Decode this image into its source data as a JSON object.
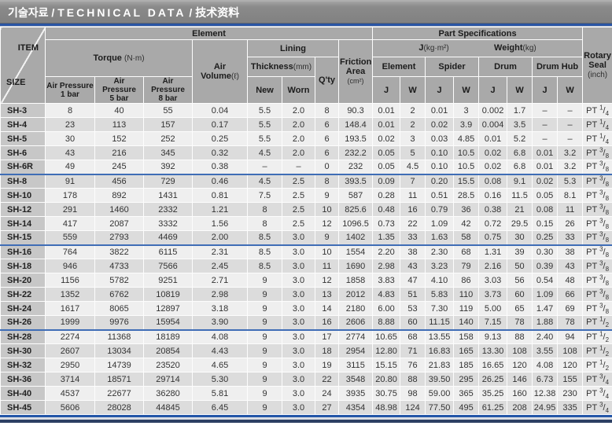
{
  "colors": {
    "accent_blue": "#2a55a4",
    "group_separator_blue": "#3f6db6",
    "bottom_navy": "#2c3f63",
    "header_gray": "#a9a9a9",
    "row_light": "#efefef",
    "row_dark": "#dcdcdc",
    "size_column_gray": "#c7c7c7",
    "titlebar_gray": "#8a8a8a"
  },
  "title": {
    "korean": "기술자료",
    "separator": " / ",
    "english": "TECHNICAL DATA",
    "chinese": "技术资料"
  },
  "table": {
    "corner": {
      "item": "ITEM",
      "size": "SIZE"
    },
    "header": {
      "element_label": "Element",
      "part_specs_label": "Part Specifications",
      "torque_label": "Torque ",
      "torque_unit": "(N·m)",
      "air_pressure_label": "Air Pressure",
      "ap_bars": [
        "1 bar",
        "5 bar",
        "8 bar"
      ],
      "air_volume_label": "Air Volume",
      "air_volume_unit": "(ℓ)",
      "lining_label": "Lining",
      "thickness_label": "Thickness",
      "thickness_unit": "(mm)",
      "new_label": "New",
      "worn_label": "Worn",
      "qty_label": "Q'ty",
      "friction_line1": "Friction",
      "friction_line2": "Area",
      "friction_unit": "(cm²)",
      "j_label": "J",
      "j_unit": "(kg·m²)",
      "weight_label": "Weight",
      "weight_unit": "(kg)",
      "groups": [
        "Element",
        "Spider",
        "Drum",
        "Drum Hub"
      ],
      "j_col": "J",
      "w_col": "W",
      "rotary_line1": "Rotary",
      "rotary_line2": "Seal",
      "rotary_unit": "(inch)"
    },
    "rows": [
      {
        "size": "SH-3",
        "torque_1bar": "8",
        "torque_5bar": "40",
        "torque_8bar": "55",
        "air_volume": "0.04",
        "lining_new": "5.5",
        "lining_worn": "2.0",
        "qty": "8",
        "friction_area": "90.3",
        "element_j": "0.01",
        "element_w": "2",
        "spider_j": "0.01",
        "spider_w": "3",
        "drum_j": "0.002",
        "drum_w": "1.7",
        "drum_hub_j": "–",
        "drum_hub_w": "–",
        "rotary_seal": "PT 1/4",
        "group_end": false
      },
      {
        "size": "SH-4",
        "torque_1bar": "23",
        "torque_5bar": "113",
        "torque_8bar": "157",
        "air_volume": "0.17",
        "lining_new": "5.5",
        "lining_worn": "2.0",
        "qty": "6",
        "friction_area": "148.4",
        "element_j": "0.01",
        "element_w": "2",
        "spider_j": "0.02",
        "spider_w": "3.9",
        "drum_j": "0.004",
        "drum_w": "3.5",
        "drum_hub_j": "–",
        "drum_hub_w": "–",
        "rotary_seal": "PT 1/4",
        "group_end": false
      },
      {
        "size": "SH-5",
        "torque_1bar": "30",
        "torque_5bar": "152",
        "torque_8bar": "252",
        "air_volume": "0.25",
        "lining_new": "5.5",
        "lining_worn": "2.0",
        "qty": "6",
        "friction_area": "193.5",
        "element_j": "0.02",
        "element_w": "3",
        "spider_j": "0.03",
        "spider_w": "4.85",
        "drum_j": "0.01",
        "drum_w": "5.2",
        "drum_hub_j": "–",
        "drum_hub_w": "–",
        "rotary_seal": "PT 1/4",
        "group_end": false
      },
      {
        "size": "SH-6",
        "torque_1bar": "43",
        "torque_5bar": "216",
        "torque_8bar": "345",
        "air_volume": "0.32",
        "lining_new": "4.5",
        "lining_worn": "2.0",
        "qty": "6",
        "friction_area": "232.2",
        "element_j": "0.05",
        "element_w": "5",
        "spider_j": "0.10",
        "spider_w": "10.5",
        "drum_j": "0.02",
        "drum_w": "6.8",
        "drum_hub_j": "0.01",
        "drum_hub_w": "3.2",
        "rotary_seal": "PT 3/8",
        "group_end": false
      },
      {
        "size": "SH-6R",
        "torque_1bar": "49",
        "torque_5bar": "245",
        "torque_8bar": "392",
        "air_volume": "0.38",
        "lining_new": "–",
        "lining_worn": "–",
        "qty": "0",
        "friction_area": "232",
        "element_j": "0.05",
        "element_w": "4.5",
        "spider_j": "0.10",
        "spider_w": "10.5",
        "drum_j": "0.02",
        "drum_w": "6.8",
        "drum_hub_j": "0.01",
        "drum_hub_w": "3.2",
        "rotary_seal": "PT 3/8",
        "group_end": true
      },
      {
        "size": "SH-8",
        "torque_1bar": "91",
        "torque_5bar": "456",
        "torque_8bar": "729",
        "air_volume": "0.46",
        "lining_new": "4.5",
        "lining_worn": "2.5",
        "qty": "8",
        "friction_area": "393.5",
        "element_j": "0.09",
        "element_w": "7",
        "spider_j": "0.20",
        "spider_w": "15.5",
        "drum_j": "0.08",
        "drum_w": "9.1",
        "drum_hub_j": "0.02",
        "drum_hub_w": "5.3",
        "rotary_seal": "PT 3/8",
        "group_end": false
      },
      {
        "size": "SH-10",
        "torque_1bar": "178",
        "torque_5bar": "892",
        "torque_8bar": "1431",
        "air_volume": "0.81",
        "lining_new": "7.5",
        "lining_worn": "2.5",
        "qty": "9",
        "friction_area": "587",
        "element_j": "0.28",
        "element_w": "11",
        "spider_j": "0.51",
        "spider_w": "28.5",
        "drum_j": "0.16",
        "drum_w": "11.5",
        "drum_hub_j": "0.05",
        "drum_hub_w": "8.1",
        "rotary_seal": "PT 3/8",
        "group_end": false
      },
      {
        "size": "SH-12",
        "torque_1bar": "291",
        "torque_5bar": "1460",
        "torque_8bar": "2332",
        "air_volume": "1.21",
        "lining_new": "8",
        "lining_worn": "2.5",
        "qty": "10",
        "friction_area": "825.6",
        "element_j": "0.48",
        "element_w": "16",
        "spider_j": "0.79",
        "spider_w": "36",
        "drum_j": "0.38",
        "drum_w": "21",
        "drum_hub_j": "0.08",
        "drum_hub_w": "11",
        "rotary_seal": "PT 3/8",
        "group_end": false
      },
      {
        "size": "SH-14",
        "torque_1bar": "417",
        "torque_5bar": "2087",
        "torque_8bar": "3332",
        "air_volume": "1.56",
        "lining_new": "8",
        "lining_worn": "2.5",
        "qty": "12",
        "friction_area": "1096.5",
        "element_j": "0.73",
        "element_w": "22",
        "spider_j": "1.09",
        "spider_w": "42",
        "drum_j": "0.72",
        "drum_w": "29.5",
        "drum_hub_j": "0.15",
        "drum_hub_w": "26",
        "rotary_seal": "PT 3/8",
        "group_end": false
      },
      {
        "size": "SH-15",
        "torque_1bar": "559",
        "torque_5bar": "2793",
        "torque_8bar": "4469",
        "air_volume": "2.00",
        "lining_new": "8.5",
        "lining_worn": "3.0",
        "qty": "9",
        "friction_area": "1402",
        "element_j": "1.35",
        "element_w": "33",
        "spider_j": "1.63",
        "spider_w": "58",
        "drum_j": "0.75",
        "drum_w": "30",
        "drum_hub_j": "0.25",
        "drum_hub_w": "33",
        "rotary_seal": "PT 3/8",
        "group_end": true
      },
      {
        "size": "SH-16",
        "torque_1bar": "764",
        "torque_5bar": "3822",
        "torque_8bar": "6115",
        "air_volume": "2.31",
        "lining_new": "8.5",
        "lining_worn": "3.0",
        "qty": "10",
        "friction_area": "1554",
        "element_j": "2.20",
        "element_w": "38",
        "spider_j": "2.30",
        "spider_w": "68",
        "drum_j": "1.31",
        "drum_w": "39",
        "drum_hub_j": "0.30",
        "drum_hub_w": "38",
        "rotary_seal": "PT 3/8",
        "group_end": false
      },
      {
        "size": "SH-18",
        "torque_1bar": "946",
        "torque_5bar": "4733",
        "torque_8bar": "7566",
        "air_volume": "2.45",
        "lining_new": "8.5",
        "lining_worn": "3.0",
        "qty": "11",
        "friction_area": "1690",
        "element_j": "2.98",
        "element_w": "43",
        "spider_j": "3.23",
        "spider_w": "79",
        "drum_j": "2.16",
        "drum_w": "50",
        "drum_hub_j": "0.39",
        "drum_hub_w": "43",
        "rotary_seal": "PT 3/8",
        "group_end": false
      },
      {
        "size": "SH-20",
        "torque_1bar": "1156",
        "torque_5bar": "5782",
        "torque_8bar": "9251",
        "air_volume": "2.71",
        "lining_new": "9",
        "lining_worn": "3.0",
        "qty": "12",
        "friction_area": "1858",
        "element_j": "3.83",
        "element_w": "47",
        "spider_j": "4.10",
        "spider_w": "86",
        "drum_j": "3.03",
        "drum_w": "56",
        "drum_hub_j": "0.54",
        "drum_hub_w": "48",
        "rotary_seal": "PT 3/8",
        "group_end": false
      },
      {
        "size": "SH-22",
        "torque_1bar": "1352",
        "torque_5bar": "6762",
        "torque_8bar": "10819",
        "air_volume": "2.98",
        "lining_new": "9",
        "lining_worn": "3.0",
        "qty": "13",
        "friction_area": "2012",
        "element_j": "4.83",
        "element_w": "51",
        "spider_j": "5.83",
        "spider_w": "110",
        "drum_j": "3.73",
        "drum_w": "60",
        "drum_hub_j": "1.09",
        "drum_hub_w": "66",
        "rotary_seal": "PT 3/8",
        "group_end": false
      },
      {
        "size": "SH-24",
        "torque_1bar": "1617",
        "torque_5bar": "8065",
        "torque_8bar": "12897",
        "air_volume": "3.18",
        "lining_new": "9",
        "lining_worn": "3.0",
        "qty": "14",
        "friction_area": "2180",
        "element_j": "6.00",
        "element_w": "53",
        "spider_j": "7.30",
        "spider_w": "119",
        "drum_j": "5.00",
        "drum_w": "65",
        "drum_hub_j": "1.47",
        "drum_hub_w": "69",
        "rotary_seal": "PT 3/8",
        "group_end": false
      },
      {
        "size": "SH-26",
        "torque_1bar": "1999",
        "torque_5bar": "9976",
        "torque_8bar": "15954",
        "air_volume": "3.90",
        "lining_new": "9",
        "lining_worn": "3.0",
        "qty": "16",
        "friction_area": "2606",
        "element_j": "8.88",
        "element_w": "60",
        "spider_j": "11.15",
        "spider_w": "140",
        "drum_j": "7.15",
        "drum_w": "78",
        "drum_hub_j": "1.88",
        "drum_hub_w": "78",
        "rotary_seal": "PT 1/2",
        "group_end": true
      },
      {
        "size": "SH-28",
        "torque_1bar": "2274",
        "torque_5bar": "11368",
        "torque_8bar": "18189",
        "air_volume": "4.08",
        "lining_new": "9",
        "lining_worn": "3.0",
        "qty": "17",
        "friction_area": "2774",
        "element_j": "10.65",
        "element_w": "68",
        "spider_j": "13.55",
        "spider_w": "158",
        "drum_j": "9.13",
        "drum_w": "88",
        "drum_hub_j": "2.40",
        "drum_hub_w": "94",
        "rotary_seal": "PT 1/2",
        "group_end": false
      },
      {
        "size": "SH-30",
        "torque_1bar": "2607",
        "torque_5bar": "13034",
        "torque_8bar": "20854",
        "air_volume": "4.43",
        "lining_new": "9",
        "lining_worn": "3.0",
        "qty": "18",
        "friction_area": "2954",
        "element_j": "12.80",
        "element_w": "71",
        "spider_j": "16.83",
        "spider_w": "165",
        "drum_j": "13.30",
        "drum_w": "108",
        "drum_hub_j": "3.55",
        "drum_hub_w": "108",
        "rotary_seal": "PT 1/2",
        "group_end": false
      },
      {
        "size": "SH-32",
        "torque_1bar": "2950",
        "torque_5bar": "14739",
        "torque_8bar": "23520",
        "air_volume": "4.65",
        "lining_new": "9",
        "lining_worn": "3.0",
        "qty": "19",
        "friction_area": "3115",
        "element_j": "15.15",
        "element_w": "76",
        "spider_j": "21.83",
        "spider_w": "185",
        "drum_j": "16.65",
        "drum_w": "120",
        "drum_hub_j": "4.08",
        "drum_hub_w": "120",
        "rotary_seal": "PT 1/2",
        "group_end": false
      },
      {
        "size": "SH-36",
        "torque_1bar": "3714",
        "torque_5bar": "18571",
        "torque_8bar": "29714",
        "air_volume": "5.30",
        "lining_new": "9",
        "lining_worn": "3.0",
        "qty": "22",
        "friction_area": "3548",
        "element_j": "20.80",
        "element_w": "88",
        "spider_j": "39.50",
        "spider_w": "295",
        "drum_j": "26.25",
        "drum_w": "146",
        "drum_hub_j": "6.73",
        "drum_hub_w": "155",
        "rotary_seal": "PT 3/4",
        "group_end": false
      },
      {
        "size": "SH-40",
        "torque_1bar": "4537",
        "torque_5bar": "22677",
        "torque_8bar": "36280",
        "air_volume": "5.81",
        "lining_new": "9",
        "lining_worn": "3.0",
        "qty": "24",
        "friction_area": "3935",
        "element_j": "30.75",
        "element_w": "98",
        "spider_j": "59.00",
        "spider_w": "365",
        "drum_j": "35.25",
        "drum_w": "160",
        "drum_hub_j": "12.38",
        "drum_hub_w": "230",
        "rotary_seal": "PT 3/4",
        "group_end": false
      },
      {
        "size": "SH-45",
        "torque_1bar": "5606",
        "torque_5bar": "28028",
        "torque_8bar": "44845",
        "air_volume": "6.45",
        "lining_new": "9",
        "lining_worn": "3.0",
        "qty": "27",
        "friction_area": "4354",
        "element_j": "48.98",
        "element_w": "124",
        "spider_j": "77.50",
        "spider_w": "495",
        "drum_j": "61.25",
        "drum_w": "208",
        "drum_hub_j": "24.95",
        "drum_hub_w": "335",
        "rotary_seal": "PT 3/4",
        "group_end": false
      }
    ]
  }
}
